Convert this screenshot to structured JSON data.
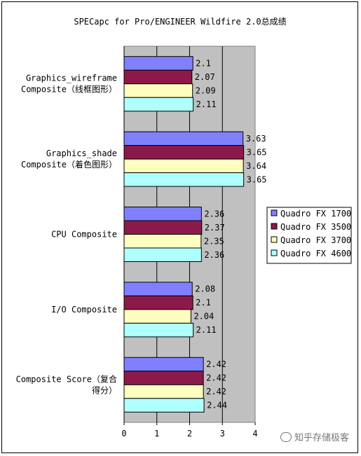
{
  "chart_data": {
    "type": "bar",
    "orientation": "horizontal",
    "title": "SPECapc for Pro/ENGINEER Wildfire 2.0总成绩",
    "categories": [
      [
        "Graphics_wireframe",
        "Composite（线框图形）"
      ],
      [
        "Graphics_shade",
        "Composite（着色图形）"
      ],
      [
        "CPU Composite"
      ],
      [
        "I/O Composite"
      ],
      [
        "Composite Score（复合",
        "得分）"
      ]
    ],
    "series": [
      {
        "name": "Quadro FX 1700",
        "color": "#8080ff",
        "values": [
          2.1,
          3.63,
          2.36,
          2.08,
          2.42
        ],
        "labels": [
          "2.1",
          "3.63",
          "2.36",
          "2.08",
          "2.42"
        ]
      },
      {
        "name": "Quadro FX 3500",
        "color": "#8b1a4a",
        "values": [
          2.07,
          3.65,
          2.37,
          2.1,
          2.42
        ],
        "labels": [
          "2.07",
          "3.65",
          "2.37",
          "2.1",
          "2.42"
        ]
      },
      {
        "name": "Quadro FX 3700",
        "color": "#ffffc0",
        "values": [
          2.09,
          3.64,
          2.35,
          2.04,
          2.42
        ],
        "labels": [
          "2.09",
          "3.64",
          "2.35",
          "2.04",
          "2.42"
        ]
      },
      {
        "name": "Quadro FX 4600",
        "color": "#b0ffff",
        "values": [
          2.11,
          3.65,
          2.36,
          2.11,
          2.44
        ],
        "labels": [
          "2.11",
          "3.65",
          "2.36",
          "2.11",
          "2.44"
        ]
      }
    ],
    "xlim": [
      0,
      4
    ],
    "xticks": [
      "0",
      "1",
      "2",
      "3",
      "4"
    ],
    "grid": true,
    "plot_background": "#c0c0c0",
    "legend_position": "right"
  },
  "watermark": "知乎存储极客"
}
